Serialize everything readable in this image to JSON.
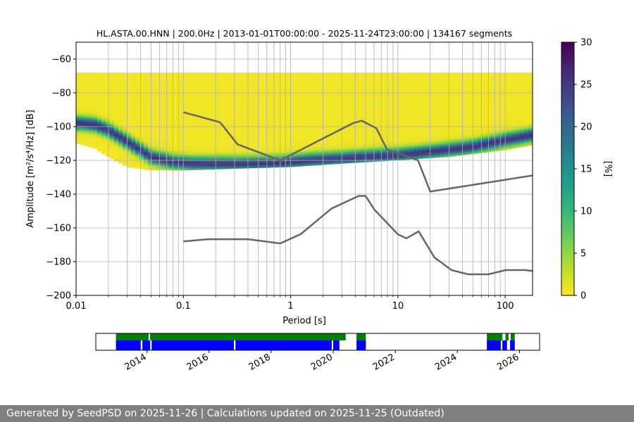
{
  "footer": "Generated by SeedPSD on 2025-11-26 | Calculations updated on 2025-11-25 (Outdated)",
  "colors": {
    "nlnm_nhnm": "#666666",
    "grid": "#b0b0b0",
    "availability_green": "#008000",
    "availability_blue": "#0000ff",
    "colormap": [
      "#fde725",
      "#b5de2b",
      "#6ece58",
      "#35b779",
      "#1f9e89",
      "#26828e",
      "#31688e",
      "#3e4989",
      "#482878",
      "#440154"
    ]
  },
  "chart_data": [
    {
      "type": "heatmap",
      "title": "HL.ASTA.00.HNN | 200.0Hz | 2013-01-01T00:00:00 - 2025-11-24T23:00:00 | 134167 segments",
      "xlabel": "Period [s]",
      "ylabel": "Amplitude [m²/s⁴/Hz] [dB]",
      "xscale": "log",
      "xlim": [
        0.01,
        180
      ],
      "ylim": [
        -200,
        -50
      ],
      "xticks": [
        0.01,
        0.1,
        1,
        10,
        100
      ],
      "xticklabels": [
        "0.01",
        "0.1",
        "1",
        "10",
        "100"
      ],
      "yticks": [
        -200,
        -180,
        -160,
        -140,
        -120,
        -100,
        -80,
        -60
      ],
      "yticklabels": [
        "−200",
        "−180",
        "−160",
        "−140",
        "−120",
        "−100",
        "−80",
        "−60"
      ],
      "grid": true,
      "colorbar": {
        "label": "[%]",
        "range": [
          0,
          30
        ],
        "ticks": [
          0,
          5,
          10,
          15,
          20,
          25,
          30
        ],
        "ticklabels": [
          "0",
          "5",
          "10",
          "15",
          "20",
          "25",
          "30"
        ]
      },
      "psd_mode": {
        "period": [
          0.011,
          0.015,
          0.02,
          0.03,
          0.05,
          0.08,
          0.12,
          0.2,
          0.4,
          0.8,
          1.5,
          3,
          5,
          10,
          20,
          50,
          100,
          180
        ],
        "db": [
          -98,
          -99,
          -102,
          -109,
          -118,
          -121,
          -122,
          -122,
          -122,
          -121.5,
          -120,
          -119,
          -118,
          -117,
          -115,
          -112,
          -108,
          -105
        ]
      },
      "psd_upper": {
        "period": [
          0.01,
          0.015,
          0.02,
          0.03,
          0.05,
          0.1,
          0.3,
          1,
          3,
          10,
          30,
          100,
          180
        ],
        "db": [
          -68,
          -68,
          -68,
          -68,
          -68,
          -68,
          -68,
          -68,
          -68,
          -68,
          -68,
          -68,
          -68
        ]
      },
      "psd_lower": {
        "period": [
          0.01,
          0.015,
          0.02,
          0.03,
          0.05,
          0.1,
          0.3,
          1,
          3,
          10,
          30,
          100,
          180
        ],
        "db": [
          -110,
          -113,
          -118,
          -124,
          -126,
          -126,
          -125,
          -124,
          -122,
          -120,
          -118,
          -114,
          -111
        ]
      },
      "nhnm": {
        "period": [
          0.1,
          0.22,
          0.32,
          0.8,
          3.8,
          4.6,
          6.3,
          7.9,
          15.4,
          20,
          354.8
        ],
        "db": [
          -91.5,
          -97.4,
          -110.5,
          -120,
          -98,
          -96.5,
          -101,
          -113.5,
          -120,
          -138.5,
          -126
        ]
      },
      "nlnm": {
        "period": [
          0.1,
          0.17,
          0.4,
          0.8,
          1.24,
          2.4,
          4.3,
          5,
          6,
          10,
          12,
          15.6,
          21.9,
          31.6,
          45,
          70,
          101,
          154,
          180
        ],
        "db": [
          -168,
          -166.7,
          -166.7,
          -169.2,
          -163.7,
          -148.6,
          -141.1,
          -141.1,
          -149,
          -163.8,
          -166.2,
          -162.1,
          -177.5,
          -185,
          -187.5,
          -187.5,
          -185,
          -185,
          -185.5
        ]
      }
    },
    {
      "type": "bar",
      "xlim": [
        2012.35,
        2026.65
      ],
      "xticks": [
        2014,
        2016,
        2018,
        2020,
        2022,
        2024,
        2026
      ],
      "xticklabels": [
        "2014",
        "2016",
        "2018",
        "2020",
        "2022",
        "2024",
        "2026"
      ],
      "green_segments": [
        [
          2013.0,
          2014.05
        ],
        [
          2014.1,
          2020.4
        ],
        [
          2020.75,
          2021.05
        ],
        [
          2024.95,
          2025.45
        ],
        [
          2025.55,
          2025.65
        ],
        [
          2025.72,
          2025.85
        ]
      ],
      "blue_segments": [
        [
          2013.0,
          2013.8
        ],
        [
          2013.85,
          2014.1
        ],
        [
          2014.15,
          2016.8
        ],
        [
          2016.85,
          2019.95
        ],
        [
          2020.0,
          2020.2
        ],
        [
          2020.75,
          2021.05
        ],
        [
          2024.95,
          2025.4
        ],
        [
          2025.45,
          2025.6
        ],
        [
          2025.7,
          2025.85
        ]
      ]
    }
  ]
}
